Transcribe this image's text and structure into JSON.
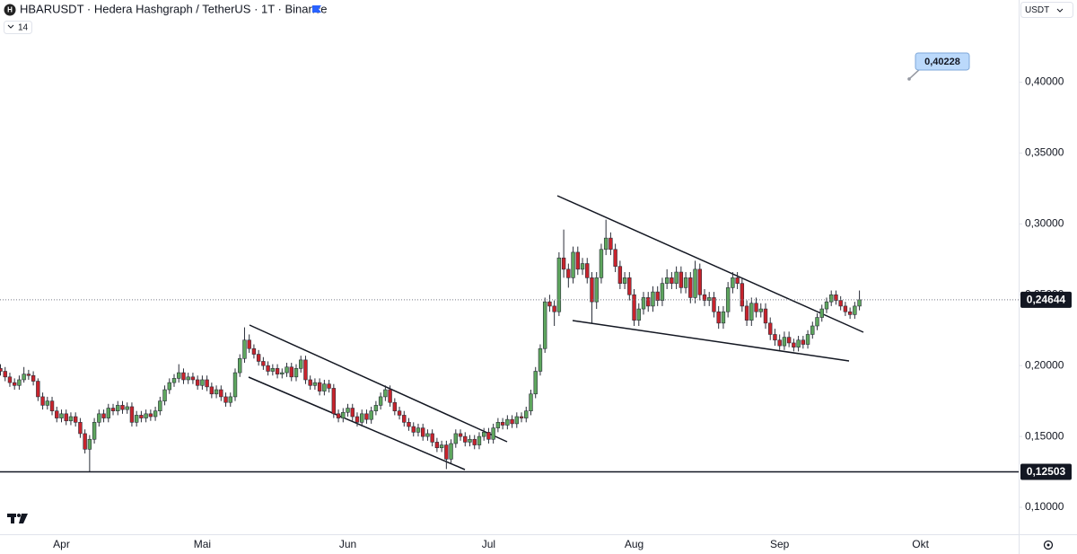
{
  "chart_data": {
    "type": "candlestick",
    "title": "HBARUSDT · Hedera Hashgraph / TetherUS · 1T · Binance",
    "indicator": "14",
    "currency": "USDT",
    "up_color": "#5ea65e",
    "down_color": "#c8232c",
    "ylim": [
      0.081,
      0.458
    ],
    "yticks": [
      {
        "value": 0.1,
        "label": "0,10000"
      },
      {
        "value": 0.15,
        "label": "0,15000"
      },
      {
        "value": 0.2,
        "label": "0,20000"
      },
      {
        "value": 0.25,
        "label": "0,25000"
      },
      {
        "value": 0.3,
        "label": "0,30000"
      },
      {
        "value": 0.35,
        "label": "0,35000"
      },
      {
        "value": 0.4,
        "label": "0,40000"
      }
    ],
    "grid": false,
    "levels": [
      {
        "value": 0.24644,
        "label": "0,24644",
        "style": "dotted"
      },
      {
        "value": 0.12503,
        "label": "0,12503",
        "style": "solid"
      }
    ],
    "annotations": [
      {
        "value": 0.40228,
        "label": "0,40228"
      }
    ],
    "categories": [
      null,
      null,
      null,
      null,
      null,
      null,
      null,
      null,
      null,
      null,
      null,
      null,
      null,
      "Apr",
      null,
      null,
      null,
      null,
      null,
      null,
      null,
      null,
      null,
      null,
      null,
      null,
      null,
      null,
      null,
      null,
      null,
      null,
      null,
      null,
      null,
      null,
      null,
      null,
      null,
      null,
      null,
      null,
      null,
      "Mai",
      null,
      null,
      null,
      null,
      null,
      null,
      null,
      null,
      null,
      null,
      null,
      null,
      null,
      null,
      null,
      null,
      null,
      null,
      null,
      null,
      null,
      null,
      null,
      null,
      null,
      null,
      null,
      null,
      null,
      null,
      "Jun",
      null,
      null,
      null,
      null,
      null,
      null,
      null,
      null,
      null,
      null,
      null,
      null,
      null,
      null,
      null,
      null,
      null,
      null,
      null,
      null,
      null,
      null,
      null,
      null,
      null,
      null,
      null,
      null,
      null,
      "Jul",
      null,
      null,
      null,
      null,
      null,
      null,
      null,
      null,
      null,
      null,
      null,
      null,
      null,
      null,
      null,
      null,
      null,
      null,
      null,
      null,
      null,
      null,
      null,
      null,
      null,
      null,
      null,
      null,
      null,
      null,
      "Aug",
      null,
      null,
      null,
      null,
      null,
      null,
      null,
      null,
      null,
      null,
      null,
      null,
      null,
      null,
      null,
      null,
      null,
      null,
      null,
      null,
      null,
      null,
      null,
      null,
      null,
      null,
      null,
      null,
      null,
      null,
      "Sep",
      null,
      null,
      null,
      null,
      null,
      null,
      null,
      null,
      null,
      null,
      null,
      null,
      null,
      null,
      null,
      null,
      null,
      null,
      null,
      null,
      null,
      null,
      null,
      null,
      null,
      null,
      null,
      null,
      null,
      "Okt"
    ],
    "open": [
      0.198,
      0.196,
      0.192,
      0.188,
      0.186,
      0.19,
      0.194,
      0.193,
      0.189,
      0.178,
      0.172,
      0.175,
      0.168,
      0.163,
      0.166,
      0.161,
      0.164,
      0.16,
      0.152,
      0.141,
      0.148,
      0.16,
      0.166,
      0.163,
      0.17,
      0.168,
      0.172,
      0.169,
      0.171,
      0.16,
      0.165,
      0.163,
      0.166,
      0.164,
      0.168,
      0.175,
      0.183,
      0.188,
      0.191,
      0.195,
      0.19,
      0.192,
      0.19,
      0.186,
      0.19,
      0.185,
      0.18,
      0.183,
      0.178,
      0.174,
      0.178,
      0.195,
      0.205,
      0.218,
      0.212,
      0.208,
      0.203,
      0.2,
      0.196,
      0.198,
      0.194,
      0.195,
      0.199,
      0.192,
      0.198,
      0.204,
      0.19,
      0.186,
      0.188,
      0.182,
      0.187,
      0.184,
      0.166,
      0.163,
      0.167,
      0.17,
      0.164,
      0.16,
      0.166,
      0.162,
      0.168,
      0.172,
      0.178,
      0.183,
      0.174,
      0.168,
      0.165,
      0.16,
      0.157,
      0.153,
      0.156,
      0.15,
      0.152,
      0.146,
      0.142,
      0.144,
      0.134,
      0.145,
      0.152,
      0.15,
      0.146,
      0.148,
      0.144,
      0.15,
      0.153,
      0.148,
      0.156,
      0.16,
      0.158,
      0.162,
      0.159,
      0.164,
      0.163,
      0.168,
      0.18,
      0.196,
      0.212,
      0.245,
      0.242,
      0.238,
      0.276,
      0.268,
      0.262,
      0.28,
      0.268,
      0.272,
      0.262,
      0.245,
      0.262,
      0.282,
      0.29,
      0.282,
      0.27,
      0.258,
      0.262,
      0.25,
      0.232,
      0.24,
      0.248,
      0.242,
      0.252,
      0.246,
      0.258,
      0.262,
      0.258,
      0.266,
      0.255,
      0.262,
      0.248,
      0.268,
      0.25,
      0.246,
      0.248,
      0.238,
      0.23,
      0.238,
      0.255,
      0.262,
      0.258,
      0.242,
      0.232,
      0.244,
      0.238,
      0.24,
      0.23,
      0.222,
      0.218,
      0.214,
      0.22,
      0.216,
      0.213,
      0.218,
      0.215,
      0.222,
      0.228,
      0.234,
      0.24,
      0.245,
      0.25,
      0.246,
      0.242,
      0.238,
      0.236,
      0.242,
      null,
      null,
      null,
      null,
      null,
      null,
      null,
      null,
      null,
      null,
      null,
      null,
      null
    ],
    "high": [
      0.201,
      0.199,
      0.195,
      0.191,
      0.193,
      0.199,
      0.197,
      0.196,
      0.191,
      0.181,
      0.178,
      0.178,
      0.171,
      0.169,
      0.169,
      0.167,
      0.167,
      0.163,
      0.155,
      0.151,
      0.163,
      0.169,
      0.169,
      0.173,
      0.173,
      0.175,
      0.175,
      0.174,
      0.174,
      0.168,
      0.168,
      0.169,
      0.169,
      0.171,
      0.178,
      0.186,
      0.191,
      0.194,
      0.201,
      0.198,
      0.195,
      0.195,
      0.193,
      0.193,
      0.193,
      0.188,
      0.186,
      0.186,
      0.181,
      0.181,
      0.198,
      0.208,
      0.227,
      0.222,
      0.215,
      0.211,
      0.206,
      0.203,
      0.201,
      0.201,
      0.198,
      0.202,
      0.202,
      0.201,
      0.207,
      0.207,
      0.193,
      0.191,
      0.191,
      0.19,
      0.19,
      0.187,
      0.169,
      0.17,
      0.173,
      0.173,
      0.167,
      0.169,
      0.169,
      0.171,
      0.175,
      0.181,
      0.186,
      0.186,
      0.177,
      0.171,
      0.168,
      0.163,
      0.16,
      0.159,
      0.159,
      0.155,
      0.155,
      0.149,
      0.147,
      0.147,
      0.148,
      0.155,
      0.155,
      0.153,
      0.151,
      0.151,
      0.153,
      0.156,
      0.156,
      0.159,
      0.163,
      0.163,
      0.165,
      0.165,
      0.167,
      0.167,
      0.171,
      0.183,
      0.199,
      0.215,
      0.248,
      0.25,
      0.246,
      0.28,
      0.296,
      0.272,
      0.284,
      0.284,
      0.276,
      0.276,
      0.266,
      0.266,
      0.286,
      0.303,
      0.294,
      0.286,
      0.274,
      0.266,
      0.266,
      0.254,
      0.244,
      0.252,
      0.252,
      0.256,
      0.256,
      0.262,
      0.268,
      0.266,
      0.27,
      0.27,
      0.266,
      0.266,
      0.274,
      0.272,
      0.254,
      0.252,
      0.252,
      0.242,
      0.242,
      0.259,
      0.266,
      0.266,
      0.262,
      0.246,
      0.248,
      0.248,
      0.244,
      0.244,
      0.234,
      0.226,
      0.222,
      0.224,
      0.224,
      0.219,
      0.221,
      0.221,
      0.225,
      0.231,
      0.237,
      0.243,
      0.248,
      0.253,
      0.253,
      0.249,
      0.245,
      0.241,
      0.245,
      0.253,
      null,
      null,
      null,
      null,
      null,
      null,
      null,
      null,
      null,
      null,
      null,
      null,
      null
    ],
    "low": [
      0.193,
      0.189,
      0.185,
      0.183,
      0.183,
      0.188,
      0.19,
      0.186,
      0.175,
      0.169,
      0.169,
      0.165,
      0.16,
      0.16,
      0.158,
      0.158,
      0.157,
      0.149,
      0.138,
      0.125,
      0.145,
      0.157,
      0.16,
      0.16,
      0.165,
      0.165,
      0.166,
      0.166,
      0.157,
      0.157,
      0.16,
      0.16,
      0.161,
      0.161,
      0.165,
      0.172,
      0.18,
      0.185,
      0.188,
      0.187,
      0.187,
      0.187,
      0.183,
      0.183,
      0.182,
      0.177,
      0.177,
      0.175,
      0.171,
      0.171,
      0.175,
      0.192,
      0.202,
      0.209,
      0.205,
      0.2,
      0.197,
      0.193,
      0.193,
      0.191,
      0.191,
      0.192,
      0.189,
      0.189,
      0.195,
      0.187,
      0.183,
      0.183,
      0.179,
      0.179,
      0.181,
      0.163,
      0.16,
      0.16,
      0.164,
      0.161,
      0.157,
      0.157,
      0.159,
      0.159,
      0.165,
      0.169,
      0.175,
      0.171,
      0.165,
      0.162,
      0.157,
      0.154,
      0.15,
      0.15,
      0.147,
      0.147,
      0.143,
      0.139,
      0.139,
      0.127,
      0.131,
      0.142,
      0.147,
      0.143,
      0.143,
      0.141,
      0.141,
      0.147,
      0.145,
      0.145,
      0.153,
      0.155,
      0.155,
      0.156,
      0.156,
      0.16,
      0.16,
      0.165,
      0.177,
      0.193,
      0.209,
      0.238,
      0.228,
      0.235,
      0.262,
      0.255,
      0.258,
      0.264,
      0.264,
      0.258,
      0.23,
      0.24,
      0.258,
      0.278,
      0.278,
      0.266,
      0.254,
      0.254,
      0.246,
      0.228,
      0.228,
      0.236,
      0.238,
      0.238,
      0.242,
      0.242,
      0.254,
      0.254,
      0.254,
      0.251,
      0.251,
      0.244,
      0.244,
      0.246,
      0.242,
      0.242,
      0.234,
      0.226,
      0.226,
      0.234,
      0.251,
      0.254,
      0.238,
      0.228,
      0.228,
      0.234,
      0.234,
      0.226,
      0.218,
      0.214,
      0.211,
      0.211,
      0.213,
      0.21,
      0.21,
      0.212,
      0.212,
      0.219,
      0.225,
      0.231,
      0.237,
      0.242,
      0.243,
      0.239,
      0.235,
      0.233,
      0.233,
      0.239,
      null,
      null,
      null,
      null,
      null,
      null,
      null,
      null,
      null,
      null,
      null,
      null,
      null
    ],
    "close": [
      0.196,
      0.192,
      0.188,
      0.186,
      0.19,
      0.194,
      0.193,
      0.189,
      0.178,
      0.172,
      0.175,
      0.168,
      0.163,
      0.166,
      0.161,
      0.164,
      0.16,
      0.152,
      0.141,
      0.148,
      0.16,
      0.166,
      0.163,
      0.17,
      0.168,
      0.172,
      0.169,
      0.171,
      0.16,
      0.165,
      0.163,
      0.166,
      0.164,
      0.168,
      0.175,
      0.183,
      0.188,
      0.191,
      0.195,
      0.19,
      0.192,
      0.19,
      0.186,
      0.19,
      0.185,
      0.18,
      0.183,
      0.178,
      0.174,
      0.178,
      0.195,
      0.205,
      0.218,
      0.212,
      0.208,
      0.203,
      0.2,
      0.196,
      0.198,
      0.194,
      0.195,
      0.199,
      0.192,
      0.198,
      0.204,
      0.19,
      0.186,
      0.188,
      0.182,
      0.187,
      0.184,
      0.166,
      0.163,
      0.167,
      0.17,
      0.164,
      0.16,
      0.166,
      0.162,
      0.168,
      0.172,
      0.178,
      0.183,
      0.174,
      0.168,
      0.165,
      0.16,
      0.157,
      0.153,
      0.156,
      0.15,
      0.152,
      0.146,
      0.142,
      0.144,
      0.134,
      0.145,
      0.152,
      0.15,
      0.146,
      0.148,
      0.144,
      0.15,
      0.153,
      0.148,
      0.156,
      0.16,
      0.158,
      0.162,
      0.159,
      0.164,
      0.163,
      0.168,
      0.18,
      0.196,
      0.212,
      0.245,
      0.242,
      0.238,
      0.276,
      0.268,
      0.262,
      0.28,
      0.268,
      0.272,
      0.262,
      0.245,
      0.262,
      0.282,
      0.29,
      0.282,
      0.27,
      0.258,
      0.262,
      0.25,
      0.232,
      0.24,
      0.248,
      0.242,
      0.252,
      0.246,
      0.258,
      0.262,
      0.258,
      0.266,
      0.255,
      0.262,
      0.248,
      0.268,
      0.25,
      0.246,
      0.248,
      0.238,
      0.23,
      0.238,
      0.255,
      0.262,
      0.258,
      0.242,
      0.232,
      0.244,
      0.238,
      0.24,
      0.23,
      0.222,
      0.218,
      0.214,
      0.22,
      0.216,
      0.213,
      0.218,
      0.215,
      0.222,
      0.228,
      0.234,
      0.24,
      0.245,
      0.25,
      0.246,
      0.242,
      0.238,
      0.236,
      0.242,
      0.24644,
      null,
      null,
      null,
      null,
      null,
      null,
      null,
      null,
      null,
      null,
      null,
      null,
      null
    ]
  }
}
